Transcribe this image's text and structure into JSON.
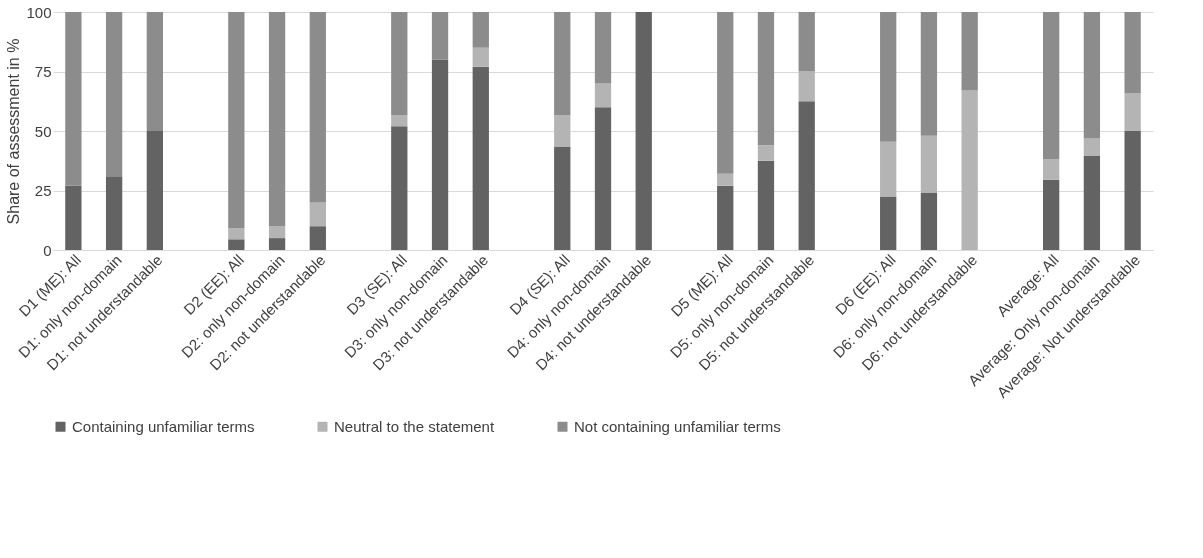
{
  "chart_data": {
    "type": "bar",
    "stacked": true,
    "ylabel": "Share of assessment in %",
    "categories": [
      "D1 (ME): All",
      "D1: only non-domain",
      "D1: not understandable",
      null,
      "D2 (EE): All",
      "D2: only non-domain",
      "D2: not understandable",
      null,
      "D3 (SE): All",
      "D3: only non-domain",
      "D3: not understandable",
      null,
      "D4 (SE): All",
      "D4: only non-domain",
      "D4: not understandable",
      null,
      "D5 (ME): All",
      "D5: only non-domain",
      "D5: not understandable",
      null,
      "D6 (EE): All",
      "D6: only non-domain",
      "D6: not understandable",
      null,
      "Average: All",
      "Average: Only non-domain",
      "Average: Not understandable"
    ],
    "series": [
      {
        "name": "Containing unfamiliar terms",
        "color": "#636363",
        "values": [
          27,
          31,
          50,
          null,
          4.5,
          5,
          10,
          null,
          52,
          80,
          77,
          null,
          43.5,
          60,
          100,
          null,
          27,
          37.5,
          62.5,
          null,
          22.5,
          24,
          0,
          null,
          29.5,
          39.5,
          50
        ]
      },
      {
        "name": "Neutral to the statement",
        "color": "#b4b4b4",
        "values": [
          0,
          0,
          0,
          null,
          4.5,
          5,
          10,
          null,
          4.5,
          0,
          8,
          null,
          13,
          10,
          0,
          null,
          5,
          6.5,
          12.5,
          null,
          23,
          24,
          67,
          null,
          8.5,
          7.5,
          16
        ]
      },
      {
        "name": "Not containing unfamiliar terms",
        "color": "#8c8c8c",
        "values": [
          73,
          69,
          50,
          null,
          91,
          90,
          80,
          null,
          43.5,
          20,
          15,
          null,
          43.5,
          30,
          0,
          null,
          68,
          56,
          25,
          null,
          54.5,
          52,
          33,
          null,
          62,
          53,
          34
        ]
      }
    ],
    "ylim": [
      0,
      100
    ],
    "yticks": [
      0,
      25,
      50,
      75,
      100
    ],
    "grid": "y",
    "legend": "bottom"
  }
}
